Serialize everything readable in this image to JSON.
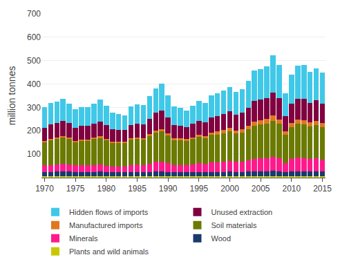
{
  "chart_data": {
    "type": "bar",
    "stacked": true,
    "ylabel": "million tonnes",
    "categories": [
      "1970",
      null,
      null,
      null,
      null,
      "1975",
      null,
      null,
      null,
      null,
      "1980",
      null,
      null,
      null,
      null,
      "1985",
      null,
      null,
      null,
      null,
      "1990",
      null,
      null,
      null,
      null,
      "1995",
      null,
      null,
      null,
      null,
      "2000",
      null,
      null,
      null,
      null,
      "2005",
      null,
      null,
      null,
      null,
      "2010",
      null,
      null,
      null,
      null,
      "2015"
    ],
    "series": [
      {
        "name": "Plants and wild animals",
        "color": "#c8c800",
        "values": [
          4,
          4,
          4,
          4,
          4,
          4,
          4,
          4,
          4,
          4,
          4,
          4,
          4,
          4,
          4,
          4,
          4,
          4,
          4,
          4,
          4,
          4,
          4,
          4,
          4,
          4,
          4,
          4,
          4,
          4,
          4,
          4,
          4,
          4,
          4,
          4,
          4,
          4,
          4,
          4,
          4,
          4,
          4,
          4,
          4,
          4
        ]
      },
      {
        "name": "Wood",
        "color": "#1a3a6b",
        "values": [
          20,
          20,
          21,
          21,
          21,
          20,
          20,
          20,
          20,
          21,
          19,
          18,
          18,
          18,
          19,
          19,
          19,
          20,
          22,
          22,
          20,
          18,
          18,
          18,
          18,
          19,
          19,
          20,
          20,
          20,
          21,
          20,
          20,
          21,
          22,
          22,
          23,
          24,
          22,
          18,
          22,
          22,
          22,
          22,
          22,
          21
        ]
      },
      {
        "name": "Minerals",
        "color": "#ff1a8c",
        "values": [
          28,
          30,
          32,
          33,
          31,
          28,
          28,
          28,
          30,
          31,
          28,
          26,
          26,
          26,
          30,
          32,
          30,
          35,
          40,
          42,
          38,
          30,
          30,
          30,
          34,
          38,
          36,
          40,
          40,
          42,
          44,
          42,
          44,
          48,
          54,
          56,
          56,
          60,
          55,
          40,
          52,
          58,
          55,
          52,
          55,
          52
        ]
      },
      {
        "name": "Soil materials",
        "color": "#6b7a00",
        "values": [
          100,
          105,
          108,
          112,
          108,
          100,
          105,
          105,
          110,
          112,
          108,
          98,
          98,
          98,
          108,
          110,
          108,
          118,
          125,
          128,
          118,
          108,
          108,
          105,
          108,
          112,
          110,
          118,
          120,
          123,
          128,
          122,
          125,
          132,
          142,
          145,
          148,
          155,
          148,
          120,
          138,
          145,
          145,
          140,
          142,
          138
        ]
      },
      {
        "name": "Manufactured imports",
        "color": "#e07820",
        "values": [
          5,
          6,
          6,
          7,
          7,
          5,
          6,
          6,
          7,
          8,
          7,
          6,
          6,
          6,
          7,
          7,
          7,
          8,
          10,
          11,
          9,
          7,
          7,
          7,
          8,
          9,
          9,
          11,
          12,
          13,
          14,
          13,
          14,
          15,
          18,
          18,
          19,
          21,
          19,
          14,
          18,
          20,
          20,
          19,
          20,
          19
        ]
      },
      {
        "name": "Unused extraction",
        "color": "#800040",
        "values": [
          55,
          62,
          63,
          65,
          62,
          56,
          57,
          58,
          60,
          63,
          59,
          53,
          50,
          50,
          57,
          59,
          58,
          67,
          75,
          80,
          69,
          58,
          55,
          52,
          57,
          61,
          59,
          65,
          67,
          69,
          72,
          68,
          70,
          77,
          87,
          87,
          90,
          98,
          91,
          67,
          82,
          88,
          90,
          82,
          86,
          82
        ]
      },
      {
        "name": "Hidden flows of imports",
        "color": "#40c8e8",
        "values": [
          88,
          93,
          90,
          93,
          83,
          78,
          80,
          80,
          86,
          93,
          83,
          72,
          68,
          64,
          78,
          83,
          83,
          95,
          105,
          115,
          93,
          78,
          75,
          70,
          78,
          85,
          82,
          93,
          96,
          100,
          105,
          98,
          102,
          115,
          130,
          132,
          135,
          160,
          142,
          98,
          125,
          140,
          145,
          132,
          138,
          132
        ]
      }
    ],
    "ylim": [
      0,
      700
    ],
    "yticks": [
      100,
      200,
      300,
      400,
      500,
      600,
      700
    ],
    "grid": true,
    "legend": "bottom"
  }
}
